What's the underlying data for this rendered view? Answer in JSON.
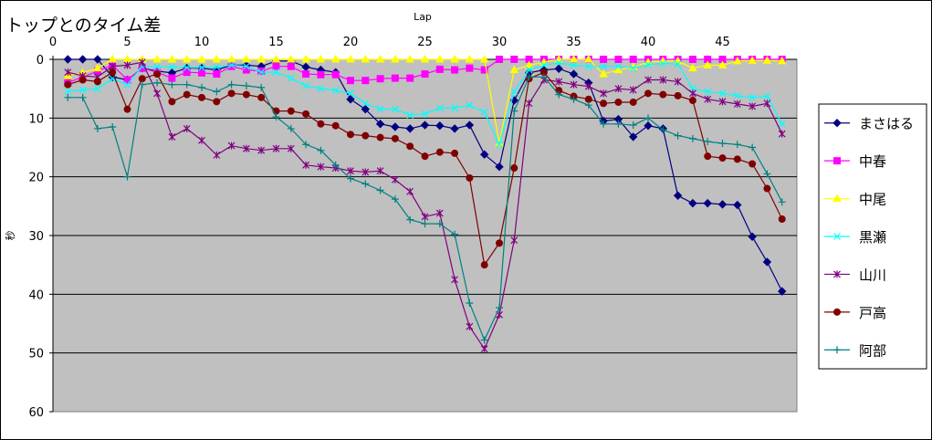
{
  "chart_data": {
    "type": "line",
    "title": "トップとのタイム差",
    "xlabel": "Lap",
    "ylabel": "秒",
    "xlim": [
      0,
      50
    ],
    "ylim": [
      0,
      60
    ],
    "y_inverted": true,
    "x_axis_position": "top",
    "xticks": [
      0,
      5,
      10,
      15,
      20,
      25,
      30,
      35,
      40,
      45
    ],
    "yticks": [
      0,
      10,
      20,
      30,
      40,
      50,
      60
    ],
    "grid": "horizontal",
    "plot_background": "#c0c0c0",
    "legend_position": "right",
    "x": [
      1,
      2,
      3,
      4,
      5,
      6,
      7,
      8,
      9,
      10,
      11,
      12,
      13,
      14,
      15,
      16,
      17,
      18,
      19,
      20,
      21,
      22,
      23,
      24,
      25,
      26,
      27,
      28,
      29,
      30,
      31,
      32,
      33,
      34,
      35,
      36,
      37,
      38,
      39,
      40,
      41,
      42,
      43,
      44,
      45,
      46,
      47,
      48,
      49
    ],
    "series": [
      {
        "name": "まさはる",
        "color": "#000080",
        "marker": "diamond",
        "values": [
          0,
          0,
          0,
          3,
          3.5,
          1.5,
          2,
          2.3,
          1.5,
          1.5,
          1.8,
          1,
          1,
          1.2,
          0.3,
          0.3,
          1.3,
          1.8,
          2.2,
          6.8,
          8.5,
          11,
          11.5,
          11.8,
          11.2,
          11.3,
          11.8,
          11.2,
          16.2,
          18.3,
          7,
          2.3,
          1.8,
          1.6,
          2.5,
          4,
          10.5,
          10.2,
          13.2,
          11.3,
          11.8,
          23.2,
          24.5,
          24.5,
          24.7,
          24.8,
          30.2,
          34.5,
          39.5
        ]
      },
      {
        "name": "中春",
        "color": "#ff00ff",
        "marker": "square",
        "values": [
          4,
          3,
          2,
          1,
          3.5,
          1.5,
          2.2,
          3.2,
          2.2,
          2.3,
          2.5,
          1.2,
          1.8,
          2,
          1.2,
          1.2,
          2.5,
          2.6,
          2.6,
          3.6,
          3.6,
          3.3,
          3.2,
          3.2,
          2.5,
          1.7,
          1.8,
          1.5,
          1.8,
          0,
          0,
          0,
          0,
          0,
          0,
          0,
          0,
          0,
          0,
          0,
          0,
          0,
          0,
          0,
          0,
          0,
          0,
          0,
          0
        ]
      },
      {
        "name": "中尾",
        "color": "#ffff00",
        "marker": "triangle",
        "values": [
          2.8,
          2.3,
          1.5,
          0,
          0,
          0,
          0,
          0,
          0,
          0,
          0,
          0,
          0,
          0,
          0,
          0,
          0,
          0,
          0,
          0,
          0,
          0,
          0,
          0,
          0,
          0,
          0,
          0,
          0,
          14.3,
          1.8,
          1,
          0.5,
          0,
          0,
          0,
          2.5,
          1.8,
          1.3,
          0.5,
          0.3,
          0.3,
          1.5,
          1,
          1,
          0.3,
          0.2,
          0.2,
          0.3
        ]
      },
      {
        "name": "黒瀬",
        "color": "#00ffff",
        "marker": "x",
        "values": [
          5.5,
          5.2,
          5,
          3.3,
          4.3,
          1.2,
          1.3,
          1.3,
          1.4,
          1.4,
          1.3,
          1,
          1.2,
          2.2,
          2.2,
          3.2,
          4.5,
          5,
          5.3,
          5.8,
          7.5,
          8.5,
          8.5,
          9.5,
          9.3,
          8.3,
          8.3,
          7.8,
          9,
          14.5,
          5.5,
          1.8,
          1,
          0.6,
          1,
          1.2,
          1.2,
          1.2,
          1.5,
          0.9,
          0.7,
          0.8,
          5,
          5.5,
          5.8,
          6.2,
          6.5,
          6.3,
          11
        ]
      },
      {
        "name": "山川",
        "color": "#800080",
        "marker": "star",
        "values": [
          2.2,
          2.8,
          3,
          1.2,
          1,
          0.5,
          5.8,
          13.2,
          11.8,
          13.8,
          16.3,
          14.7,
          15.2,
          15.5,
          15.2,
          15.2,
          18,
          18.3,
          18.5,
          19,
          19.2,
          19,
          20.5,
          22.5,
          26.8,
          26.2,
          37.5,
          45.5,
          49.3,
          43.5,
          30.8,
          7.5,
          3.5,
          3.8,
          4.3,
          4.6,
          5.8,
          5,
          5.2,
          3.5,
          3.5,
          3.8,
          5.8,
          6.8,
          7.2,
          7.6,
          8,
          7.5,
          12.7
        ]
      },
      {
        "name": "戸高",
        "color": "#800000",
        "marker": "circle",
        "values": [
          4.3,
          3.5,
          3.8,
          2.2,
          8.5,
          3.3,
          2.5,
          7.2,
          6,
          6.5,
          7.2,
          5.8,
          6,
          6.5,
          8.8,
          8.8,
          9.3,
          11,
          11.3,
          12.8,
          13,
          13.3,
          13.5,
          14.8,
          16.5,
          15.8,
          16,
          20.2,
          35,
          31.3,
          18.5,
          3.3,
          2.2,
          5.3,
          6.3,
          6.8,
          7.5,
          7.3,
          7.3,
          5.8,
          6,
          6.2,
          7,
          16.5,
          16.8,
          17,
          17.8,
          22,
          27.2
        ]
      },
      {
        "name": "阿部",
        "color": "#008080",
        "marker": "plus",
        "values": [
          6.5,
          6.5,
          11.8,
          11.5,
          20,
          4.3,
          4,
          4.3,
          4.3,
          4.8,
          5.5,
          4.3,
          4.5,
          4.8,
          9.8,
          11.8,
          14.5,
          15.5,
          18,
          20.3,
          21.2,
          22.3,
          23.8,
          27.3,
          28,
          28,
          29.8,
          41.5,
          47.8,
          42.3,
          8.8,
          3,
          3,
          6,
          6.8,
          7.8,
          11,
          11,
          11.2,
          10,
          12,
          13,
          13.5,
          14,
          14.3,
          14.5,
          15,
          19.5,
          24.3
        ]
      }
    ]
  }
}
